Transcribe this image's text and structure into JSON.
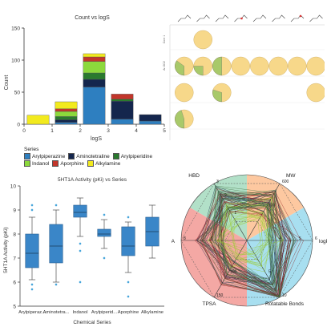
{
  "chart_data": [
    {
      "type": "bar",
      "stacked": true,
      "title": "Count vs logS",
      "xlabel": "logS",
      "ylabel": "Count",
      "xlim": [
        0,
        5
      ],
      "ylim": [
        0,
        150
      ],
      "x_ticks": [
        "0",
        "1",
        "2",
        "3",
        "4",
        "5"
      ],
      "y_ticks": [
        "0",
        "50",
        "100",
        "150"
      ],
      "bins": [
        0.5,
        1.5,
        2.5,
        3.5,
        4.5
      ],
      "series": [
        {
          "name": "Arylpiperazine",
          "color": "#2e7fc0",
          "values": [
            0,
            3,
            58,
            8,
            5
          ]
        },
        {
          "name": "Aminotetraline",
          "color": "#14264d",
          "values": [
            0,
            4,
            12,
            28,
            10
          ]
        },
        {
          "name": "Arylpiperidine",
          "color": "#2a7a2e",
          "values": [
            0,
            5,
            10,
            3,
            0
          ]
        },
        {
          "name": "Indanol",
          "color": "#8cd93c",
          "values": [
            0,
            8,
            18,
            0,
            0
          ]
        },
        {
          "name": "Aporphine",
          "color": "#c2362b",
          "values": [
            0,
            4,
            7,
            8,
            0
          ]
        },
        {
          "name": "Alkylamine",
          "color": "#f2ea1e",
          "values": [
            14,
            11,
            5,
            0,
            0
          ]
        }
      ],
      "legend": {
        "title": "Series",
        "placement": "bottom"
      }
    },
    {
      "type": "table",
      "description_colors": {
        "filled": "#f7d88a",
        "positive": "#a8c96a",
        "edge": "#c9a75a"
      },
      "grid_rows": 4,
      "grid_cols": 8,
      "row_labels": [
        "Core 1",
        "Ar-SO2",
        "",
        ""
      ],
      "pies": [
        {
          "r": 0,
          "c": 1,
          "green": 0
        },
        {
          "r": 1,
          "c": 0,
          "green": 0.35
        },
        {
          "r": 1,
          "c": 1,
          "green": 0.25
        },
        {
          "r": 1,
          "c": 2,
          "green": 0.5
        },
        {
          "r": 1,
          "c": 3,
          "green": 0
        },
        {
          "r": 1,
          "c": 4,
          "green": 0
        },
        {
          "r": 1,
          "c": 5,
          "green": 0
        },
        {
          "r": 1,
          "c": 6,
          "green": 0
        },
        {
          "r": 1,
          "c": 7,
          "green": 0
        },
        {
          "r": 2,
          "c": 0,
          "green": 0
        },
        {
          "r": 2,
          "c": 2,
          "green": 0.3
        },
        {
          "r": 2,
          "c": 7,
          "green": 0
        },
        {
          "r": 3,
          "c": 0,
          "green": 0.45
        }
      ]
    },
    {
      "type": "box",
      "title": "5HT1A Activity (pKi) vs Series",
      "xlabel": "Chemical Series",
      "ylabel": "5HT1A Activity (pKi)",
      "ylim": [
        5,
        10
      ],
      "y_ticks": [
        "5",
        "6",
        "7",
        "8",
        "9",
        "10"
      ],
      "color": "#3a86c8",
      "categories": [
        "Arylpiperaz...",
        "Aminotetra...",
        "Indanol",
        "Arylpiperid...",
        "Aporphine",
        "Alkylamine"
      ],
      "boxes": [
        {
          "min": 6.1,
          "q1": 6.6,
          "median": 7.2,
          "q3": 8.0,
          "max": 8.7,
          "outliers": [
            5.7,
            5.9,
            9.0,
            9.2
          ]
        },
        {
          "min": 6.0,
          "q1": 6.8,
          "median": 7.5,
          "q3": 8.4,
          "max": 9.0,
          "outliers": [
            5.9,
            9.2
          ]
        },
        {
          "min": 7.9,
          "q1": 8.7,
          "median": 8.9,
          "q3": 9.2,
          "max": 9.5,
          "outliers": [
            6.0,
            7.3,
            7.6
          ]
        },
        {
          "min": 7.4,
          "q1": 7.9,
          "median": 8.0,
          "q3": 8.2,
          "max": 8.6,
          "outliers": [
            7.0,
            8.8
          ]
        },
        {
          "min": 6.4,
          "q1": 7.1,
          "median": 7.5,
          "q3": 8.3,
          "max": 8.5,
          "outliers": [
            5.4,
            6.0,
            8.7
          ]
        },
        {
          "min": 7.0,
          "q1": 7.5,
          "median": 8.1,
          "q3": 8.7,
          "max": 9.2,
          "outliers": []
        }
      ]
    },
    {
      "type": "radar",
      "axes": [
        {
          "name": "HBD",
          "ticks": [
            "1",
            "2",
            "3"
          ]
        },
        {
          "name": "MW",
          "ticks": [
            "500",
            "600"
          ]
        },
        {
          "name": "logP",
          "ticks": [
            "4",
            "5",
            "6"
          ]
        },
        {
          "name": "Rotatable Bonds",
          "ticks": [
            "5",
            "10"
          ]
        },
        {
          "name": "TPSA",
          "ticks": [
            "100",
            "150"
          ]
        },
        {
          "name": "HBA",
          "ticks": [
            "6",
            "8"
          ]
        }
      ],
      "sector_colors": [
        "#b2e0c8",
        "#fdc8a0",
        "#a8dff0",
        "#f4a8a4"
      ],
      "lines_per_color": 18,
      "line_colors": [
        "#1a2b4d",
        "#8a1a1a",
        "#9acd32",
        "#3b6e3b"
      ]
    }
  ]
}
